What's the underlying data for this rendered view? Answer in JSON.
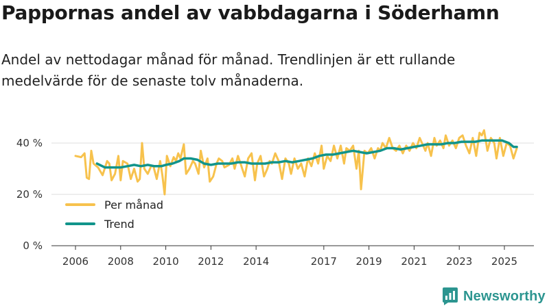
{
  "title": "Pappornas andel av vabbdagarna i Söderhamn",
  "subtitle": "Andel av nettodagar månad för månad. Trendlinjen är ett rullande medelvärde för de senaste tolv månaderna.",
  "brand": {
    "name": "Newsworthy"
  },
  "colors": {
    "monthly": "#f7c24d",
    "trend": "#11948b",
    "grid": "#dddddd",
    "axis": "#333333",
    "brand": "#2c9590"
  },
  "chart_data": {
    "type": "line",
    "title": "Pappornas andel av vabbdagarna i Söderhamn",
    "xlabel": "",
    "ylabel": "",
    "xlim": [
      2005.5,
      2026.1
    ],
    "ylim": [
      0,
      40
    ],
    "yticks": [
      0,
      20,
      40
    ],
    "ytick_labels": [
      "0 %",
      "20 %",
      "40 %"
    ],
    "xticks": [
      2006,
      2008,
      2010,
      2012,
      2014,
      2017,
      2019,
      2021,
      2023,
      2025
    ],
    "xtick_labels": [
      "2006",
      "2008",
      "2010",
      "2012",
      "2014",
      "2017",
      "2019",
      "2021",
      "2023",
      "2025"
    ],
    "grid": true,
    "legend_position": "bottom-left",
    "series": [
      {
        "name": "Per månad",
        "points": [
          [
            2006.0,
            35
          ],
          [
            2006.25,
            34.5
          ],
          [
            2006.4,
            36
          ],
          [
            2006.5,
            26.5
          ],
          [
            2006.6,
            26
          ],
          [
            2006.7,
            37
          ],
          [
            2006.8,
            32
          ],
          [
            2007.0,
            30.5
          ],
          [
            2007.2,
            27.5
          ],
          [
            2007.4,
            33
          ],
          [
            2007.5,
            32
          ],
          [
            2007.6,
            25.5
          ],
          [
            2007.75,
            28
          ],
          [
            2007.9,
            35
          ],
          [
            2008.0,
            25.5
          ],
          [
            2008.1,
            33
          ],
          [
            2008.3,
            32
          ],
          [
            2008.45,
            26
          ],
          [
            2008.6,
            30
          ],
          [
            2008.75,
            25
          ],
          [
            2008.85,
            26
          ],
          [
            2008.95,
            40
          ],
          [
            2009.05,
            30
          ],
          [
            2009.2,
            28
          ],
          [
            2009.35,
            31
          ],
          [
            2009.45,
            31
          ],
          [
            2009.6,
            26
          ],
          [
            2009.75,
            33
          ],
          [
            2009.85,
            27.5
          ],
          [
            2009.95,
            20
          ],
          [
            2010.05,
            35
          ],
          [
            2010.2,
            31
          ],
          [
            2010.35,
            34.5
          ],
          [
            2010.45,
            33
          ],
          [
            2010.55,
            36
          ],
          [
            2010.65,
            34
          ],
          [
            2010.8,
            39.5
          ],
          [
            2010.9,
            28
          ],
          [
            2011.05,
            30
          ],
          [
            2011.2,
            33
          ],
          [
            2011.3,
            32
          ],
          [
            2011.45,
            28
          ],
          [
            2011.55,
            37
          ],
          [
            2011.7,
            30.5
          ],
          [
            2011.85,
            34
          ],
          [
            2011.95,
            25
          ],
          [
            2012.1,
            27
          ],
          [
            2012.25,
            32
          ],
          [
            2012.35,
            34
          ],
          [
            2012.5,
            33
          ],
          [
            2012.6,
            30.5
          ],
          [
            2012.8,
            31.5
          ],
          [
            2012.95,
            34
          ],
          [
            2013.05,
            30
          ],
          [
            2013.2,
            35
          ],
          [
            2013.35,
            31
          ],
          [
            2013.5,
            27
          ],
          [
            2013.65,
            34
          ],
          [
            2013.8,
            36
          ],
          [
            2013.95,
            25.5
          ],
          [
            2014.05,
            32
          ],
          [
            2014.2,
            35
          ],
          [
            2014.35,
            27
          ],
          [
            2014.5,
            30
          ],
          [
            2014.6,
            33
          ],
          [
            2014.7,
            32
          ],
          [
            2014.85,
            36
          ],
          [
            2015.0,
            33
          ],
          [
            2015.15,
            26
          ],
          [
            2015.3,
            34
          ],
          [
            2015.45,
            32
          ],
          [
            2015.55,
            28
          ],
          [
            2015.7,
            34
          ],
          [
            2015.85,
            30
          ],
          [
            2016.0,
            32
          ],
          [
            2016.15,
            27
          ],
          [
            2016.3,
            34
          ],
          [
            2016.45,
            31
          ],
          [
            2016.6,
            36
          ],
          [
            2016.75,
            32
          ],
          [
            2016.9,
            39
          ],
          [
            2017.0,
            30
          ],
          [
            2017.15,
            35
          ],
          [
            2017.3,
            33
          ],
          [
            2017.45,
            39
          ],
          [
            2017.6,
            34
          ],
          [
            2017.75,
            39
          ],
          [
            2017.9,
            32
          ],
          [
            2018.0,
            38
          ],
          [
            2018.15,
            37
          ],
          [
            2018.3,
            39
          ],
          [
            2018.45,
            30
          ],
          [
            2018.55,
            37
          ],
          [
            2018.65,
            22
          ],
          [
            2018.8,
            37
          ],
          [
            2018.95,
            36
          ],
          [
            2019.1,
            38
          ],
          [
            2019.25,
            34
          ],
          [
            2019.4,
            38
          ],
          [
            2019.5,
            37
          ],
          [
            2019.6,
            40
          ],
          [
            2019.75,
            38
          ],
          [
            2019.9,
            42
          ],
          [
            2020.05,
            38
          ],
          [
            2020.2,
            37
          ],
          [
            2020.35,
            39
          ],
          [
            2020.5,
            36
          ],
          [
            2020.65,
            39
          ],
          [
            2020.8,
            37
          ],
          [
            2020.95,
            40
          ],
          [
            2021.1,
            38
          ],
          [
            2021.25,
            42
          ],
          [
            2021.4,
            39
          ],
          [
            2021.5,
            37
          ],
          [
            2021.6,
            40
          ],
          [
            2021.75,
            35
          ],
          [
            2021.9,
            42
          ],
          [
            2022.0,
            39
          ],
          [
            2022.15,
            41
          ],
          [
            2022.3,
            38
          ],
          [
            2022.4,
            43
          ],
          [
            2022.55,
            39
          ],
          [
            2022.7,
            41
          ],
          [
            2022.85,
            38
          ],
          [
            2023.0,
            42
          ],
          [
            2023.15,
            43
          ],
          [
            2023.3,
            39
          ],
          [
            2023.45,
            36
          ],
          [
            2023.6,
            42
          ],
          [
            2023.75,
            35
          ],
          [
            2023.9,
            44
          ],
          [
            2024.0,
            43
          ],
          [
            2024.1,
            45
          ],
          [
            2024.25,
            37
          ],
          [
            2024.4,
            42
          ],
          [
            2024.55,
            40
          ],
          [
            2024.65,
            34
          ],
          [
            2024.8,
            42
          ],
          [
            2024.95,
            35
          ],
          [
            2025.1,
            40
          ],
          [
            2025.25,
            39
          ],
          [
            2025.4,
            34
          ],
          [
            2025.55,
            38
          ]
        ]
      },
      {
        "name": "Trend",
        "points": [
          [
            2006.95,
            32
          ],
          [
            2007.3,
            30.5
          ],
          [
            2007.7,
            30.5
          ],
          [
            2008.0,
            30.5
          ],
          [
            2008.3,
            31
          ],
          [
            2008.6,
            31.5
          ],
          [
            2008.9,
            31
          ],
          [
            2009.2,
            31.5
          ],
          [
            2009.5,
            31
          ],
          [
            2009.8,
            31
          ],
          [
            2010.0,
            31.5
          ],
          [
            2010.3,
            32
          ],
          [
            2010.6,
            33
          ],
          [
            2010.8,
            34
          ],
          [
            2011.1,
            34
          ],
          [
            2011.4,
            33.5
          ],
          [
            2011.7,
            32
          ],
          [
            2012.0,
            31.5
          ],
          [
            2012.3,
            32
          ],
          [
            2012.6,
            32
          ],
          [
            2012.9,
            32
          ],
          [
            2013.2,
            32.5
          ],
          [
            2013.5,
            32.5
          ],
          [
            2013.8,
            32
          ],
          [
            2014.1,
            32
          ],
          [
            2014.4,
            32
          ],
          [
            2014.7,
            32.5
          ],
          [
            2015.0,
            32.5
          ],
          [
            2015.3,
            33
          ],
          [
            2015.6,
            32.5
          ],
          [
            2015.9,
            33
          ],
          [
            2016.2,
            33.5
          ],
          [
            2016.5,
            34
          ],
          [
            2016.8,
            35
          ],
          [
            2017.1,
            35.5
          ],
          [
            2017.4,
            35.5
          ],
          [
            2017.7,
            36
          ],
          [
            2018.0,
            36.5
          ],
          [
            2018.3,
            37
          ],
          [
            2018.6,
            36.5
          ],
          [
            2018.9,
            36
          ],
          [
            2019.2,
            36.5
          ],
          [
            2019.5,
            37
          ],
          [
            2019.8,
            38
          ],
          [
            2020.1,
            38
          ],
          [
            2020.4,
            37.5
          ],
          [
            2020.7,
            38
          ],
          [
            2021.0,
            38.5
          ],
          [
            2021.3,
            39
          ],
          [
            2021.6,
            39.5
          ],
          [
            2021.9,
            39.5
          ],
          [
            2022.2,
            39.5
          ],
          [
            2022.5,
            40
          ],
          [
            2022.8,
            40
          ],
          [
            2023.1,
            40.5
          ],
          [
            2023.4,
            40.5
          ],
          [
            2023.7,
            40.5
          ],
          [
            2024.0,
            41
          ],
          [
            2024.3,
            41
          ],
          [
            2024.6,
            41
          ],
          [
            2024.9,
            41
          ],
          [
            2025.2,
            40
          ],
          [
            2025.4,
            38.5
          ],
          [
            2025.55,
            38.5
          ]
        ]
      }
    ]
  }
}
